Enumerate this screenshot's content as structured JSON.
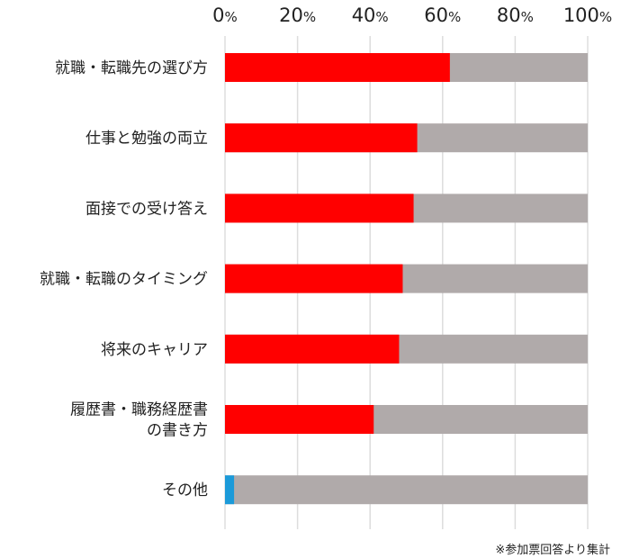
{
  "chart_data": {
    "type": "bar",
    "orientation": "horizontal",
    "stacked_to_100": true,
    "categories": [
      "就職・転職先の選び方",
      "仕事と勉強の両立",
      "面接での受け答え",
      "就職・転職のタイミング",
      "将来のキャリア",
      "履歴書・職務経歴書\nの書き方",
      "その他"
    ],
    "values": [
      62,
      53,
      52,
      49,
      48,
      41,
      2.5
    ],
    "xlim": [
      0,
      100
    ],
    "x_ticks": [
      "0%",
      "20%",
      "40%",
      "60%",
      "80%",
      "100%"
    ],
    "x_axis_position": "top",
    "grid": true,
    "colors": {
      "value": "#ff0000",
      "remainder": "#b0aaaa",
      "other_value": "#1b9ad9",
      "grid": "#dddddd"
    }
  },
  "footnote": "※参加票回答より集計"
}
